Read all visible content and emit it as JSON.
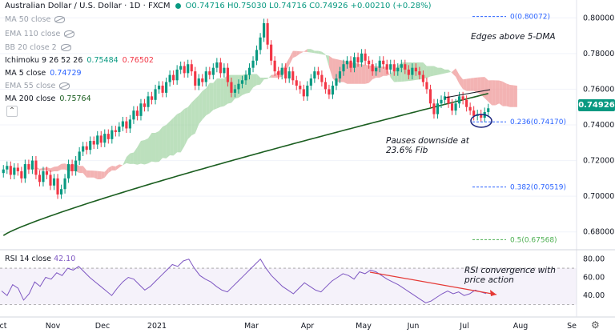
{
  "header": {
    "title": "Australian Dollar / U.S. Dollar · 1D · FXCM",
    "ohlc": {
      "o": "O0.74716",
      "h": "H0.75030",
      "l": "L0.74716",
      "c": "C0.74926",
      "chg": "+0.00210 (+0.28%)"
    }
  },
  "indicators": [
    {
      "label": "MA 50 close",
      "value": "",
      "hidden": true
    },
    {
      "label": "EMA 110 close",
      "value": "",
      "hidden": true
    },
    {
      "label": "BB 20 close 2",
      "value": "",
      "hidden": true
    },
    {
      "label": "Ichimoku 9 26 52 26",
      "value": "0.75484",
      "value2": "0.76502",
      "hidden": false
    },
    {
      "label": "MA 5 close",
      "value": "0.74729",
      "hidden": false
    },
    {
      "label": "EMA 55 close",
      "value": "",
      "hidden": true
    },
    {
      "label": "MA 200 close",
      "value": "0.75764",
      "hidden": false
    }
  ],
  "price_axis": {
    "ticks": [
      "0.80000",
      "0.78000",
      "0.76000",
      "0.74000",
      "0.72000",
      "0.70000",
      "0.68000"
    ],
    "last": "0.74926"
  },
  "rsi": {
    "label": "RSI 14 close",
    "value": "42.10",
    "ticks": [
      "80.00",
      "60.00",
      "40.00"
    ]
  },
  "time_axis": [
    "ct",
    "Nov",
    "Dec",
    "2021",
    "Mar",
    "Apr",
    "May",
    "Jun",
    "Jul",
    "Aug",
    "Se"
  ],
  "fib": [
    {
      "label": "0(0.80072)",
      "price": 0.80072
    },
    {
      "label": "0.236(0.74170)",
      "price": 0.7417
    },
    {
      "label": "0.382(0.70519)",
      "price": 0.70519
    },
    {
      "label": "0.5(0.67568)",
      "price": 0.67568
    }
  ],
  "notes": {
    "edges": "Edges above 5-DMA",
    "pauses": "Pauses downside at 23.6% Fib",
    "rsi": "RSI convergence with price action"
  },
  "colors": {
    "up": "#089981",
    "down": "#f23645",
    "ma200": "#1b5e20",
    "rsi": "#7e57c2",
    "cloud_up": "#a5d6a7",
    "cloud_down": "#ef9a9a"
  },
  "chart_data": {
    "type": "candlestick",
    "closes": [
      0.715,
      0.717,
      0.712,
      0.716,
      0.714,
      0.71,
      0.718,
      0.715,
      0.72,
      0.712,
      0.708,
      0.714,
      0.712,
      0.706,
      0.71,
      0.701,
      0.704,
      0.71,
      0.718,
      0.714,
      0.72,
      0.725,
      0.728,
      0.726,
      0.731,
      0.729,
      0.734,
      0.73,
      0.735,
      0.732,
      0.737,
      0.736,
      0.739,
      0.742,
      0.738,
      0.743,
      0.748,
      0.745,
      0.752,
      0.75,
      0.756,
      0.754,
      0.76,
      0.762,
      0.758,
      0.764,
      0.768,
      0.765,
      0.771,
      0.773,
      0.769,
      0.774,
      0.77,
      0.762,
      0.766,
      0.764,
      0.77,
      0.768,
      0.772,
      0.775,
      0.769,
      0.772,
      0.764,
      0.758,
      0.76,
      0.763,
      0.765,
      0.768,
      0.772,
      0.776,
      0.782,
      0.789,
      0.797,
      0.785,
      0.776,
      0.77,
      0.768,
      0.772,
      0.766,
      0.77,
      0.765,
      0.762,
      0.76,
      0.756,
      0.762,
      0.766,
      0.77,
      0.768,
      0.764,
      0.76,
      0.757,
      0.762,
      0.766,
      0.77,
      0.774,
      0.776,
      0.772,
      0.778,
      0.775,
      0.78,
      0.776,
      0.774,
      0.77,
      0.772,
      0.776,
      0.774,
      0.771,
      0.774,
      0.77,
      0.772,
      0.774,
      0.771,
      0.768,
      0.772,
      0.77,
      0.768,
      0.764,
      0.76,
      0.752,
      0.746,
      0.752,
      0.754,
      0.756,
      0.752,
      0.748,
      0.752,
      0.756,
      0.754,
      0.75,
      0.748,
      0.745,
      0.746,
      0.744,
      0.7472,
      0.7493
    ],
    "ma200": {
      "start": 0.678,
      "end": 0.7576
    },
    "rsi": [
      45,
      40,
      52,
      48,
      35,
      42,
      55,
      50,
      60,
      58,
      65,
      62,
      70,
      68,
      72,
      66,
      60,
      55,
      50,
      45,
      40,
      48,
      55,
      60,
      58,
      52,
      46,
      50,
      56,
      62,
      68,
      74,
      72,
      78,
      80,
      70,
      62,
      58,
      55,
      50,
      46,
      44,
      50,
      56,
      62,
      68,
      74,
      80,
      70,
      62,
      56,
      50,
      46,
      42,
      48,
      54,
      50,
      46,
      44,
      50,
      56,
      60,
      64,
      62,
      58,
      66,
      64,
      68,
      66,
      62,
      58,
      55,
      52,
      48,
      44,
      40,
      36,
      32,
      34,
      38,
      42,
      45,
      42,
      44,
      40,
      42,
      46,
      44,
      42.1
    ],
    "ylim": [
      0.67,
      0.81
    ]
  }
}
